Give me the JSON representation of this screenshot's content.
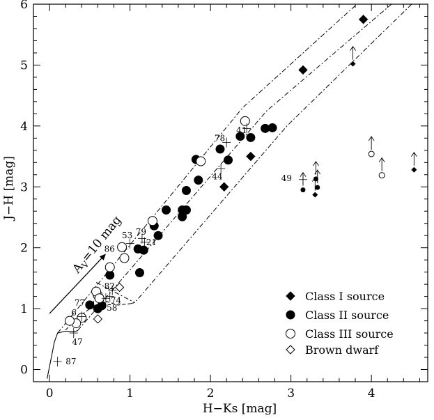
{
  "chart_data": {
    "type": "scatter",
    "title": "",
    "xlabel": "H−Ks [mag]",
    "ylabel": "J−H [mag]",
    "xlim": [
      -0.2,
      4.7
    ],
    "ylim": [
      -0.2,
      6.0
    ],
    "xticks": [
      0,
      1,
      2,
      3,
      4
    ],
    "yticks": [
      0,
      1,
      2,
      3,
      4,
      5,
      6
    ],
    "grid": false,
    "legend_position": "bottom-right",
    "reddening_vector": {
      "label_main": "A",
      "label_sub": "V",
      "label_rest": "=10 mag",
      "from": [
        0.0,
        0.92
      ],
      "to": [
        0.7,
        1.9
      ]
    },
    "legend": [
      {
        "marker": "filled-diamond",
        "label": "Class I source"
      },
      {
        "marker": "filled-circle",
        "label": "Class II source"
      },
      {
        "marker": "open-circle",
        "label": "Class III source"
      },
      {
        "marker": "open-diamond",
        "label": "Brown dwarf"
      }
    ],
    "series": [
      {
        "name": "Class I source",
        "marker": "filled-diamond",
        "points": [
          [
            3.9,
            5.75
          ],
          [
            3.15,
            4.92
          ],
          [
            2.5,
            3.5
          ],
          [
            2.17,
            3.0
          ]
        ]
      },
      {
        "name": "Class II source",
        "marker": "filled-circle",
        "points": [
          [
            2.77,
            3.97
          ],
          [
            2.68,
            3.96
          ],
          [
            2.5,
            3.81
          ],
          [
            2.37,
            3.83
          ],
          [
            2.12,
            3.62
          ],
          [
            2.22,
            3.44
          ],
          [
            1.82,
            3.45
          ],
          [
            1.85,
            3.11
          ],
          [
            1.7,
            2.94
          ],
          [
            1.65,
            2.62
          ],
          [
            1.7,
            2.62
          ],
          [
            1.65,
            2.51
          ],
          [
            1.45,
            2.62
          ],
          [
            1.3,
            2.36
          ],
          [
            1.35,
            2.2
          ],
          [
            1.1,
            1.98
          ],
          [
            1.17,
            1.96
          ],
          [
            1.12,
            1.59
          ],
          [
            0.75,
            1.55
          ],
          [
            0.65,
            1.05
          ],
          [
            0.6,
            1.0
          ],
          [
            0.5,
            1.06
          ]
        ]
      },
      {
        "name": "Class III source",
        "marker": "open-circle",
        "points": [
          [
            2.43,
            4.08
          ],
          [
            1.88,
            3.42
          ],
          [
            1.28,
            2.44
          ],
          [
            0.9,
            2.01
          ],
          [
            0.93,
            1.83
          ],
          [
            0.75,
            1.68
          ],
          [
            0.6,
            1.22
          ],
          [
            0.58,
            1.28
          ],
          [
            0.62,
            1.17
          ],
          [
            0.4,
            0.85
          ],
          [
            0.33,
            0.76
          ],
          [
            0.25,
            0.8
          ]
        ]
      },
      {
        "name": "Brown dwarf",
        "marker": "open-diamond",
        "points": [
          [
            0.87,
            1.35
          ],
          [
            0.6,
            0.83
          ]
        ]
      },
      {
        "name": "lower limits (filled diamond)",
        "marker": "small-filled-diamond-arrow",
        "points": [
          [
            3.77,
            5.02
          ],
          [
            4.53,
            3.28
          ],
          [
            3.3,
            2.87
          ]
        ]
      },
      {
        "name": "lower limits (filled circle)",
        "marker": "small-filled-circle-arrow",
        "points": [
          [
            3.15,
            2.95
          ],
          [
            3.31,
            3.13
          ],
          [
            3.33,
            2.99
          ]
        ]
      },
      {
        "name": "lower limits (open circle)",
        "marker": "small-open-circle-arrow",
        "points": [
          [
            4.0,
            3.54
          ],
          [
            4.13,
            3.19
          ]
        ]
      },
      {
        "name": "labelled error points",
        "marker": "cross",
        "points": [
          [
            0.1,
            0.13
          ],
          [
            0.3,
            0.6
          ],
          [
            0.4,
            0.87
          ],
          [
            0.55,
            1.05
          ],
          [
            0.75,
            1.2
          ],
          [
            0.78,
            1.3
          ],
          [
            0.7,
            1.17
          ],
          [
            1.0,
            2.07
          ],
          [
            1.15,
            2.15
          ],
          [
            1.18,
            2.09
          ],
          [
            2.13,
            3.3
          ],
          [
            2.2,
            3.73
          ],
          [
            2.45,
            3.96
          ],
          [
            3.15,
            3.12
          ]
        ]
      }
    ],
    "annotations": [
      {
        "text": "87",
        "x": 0.2,
        "y": 0.13
      },
      {
        "text": "47",
        "x": 0.28,
        "y": 0.45
      },
      {
        "text": "6",
        "x": 0.27,
        "y": 0.93
      },
      {
        "text": "77",
        "x": 0.31,
        "y": 1.09
      },
      {
        "text": "58",
        "x": 0.71,
        "y": 1.01
      },
      {
        "text": "74",
        "x": 0.76,
        "y": 1.13
      },
      {
        "text": "82",
        "x": 0.68,
        "y": 1.37
      },
      {
        "text": "86",
        "x": 0.68,
        "y": 1.98
      },
      {
        "text": "53",
        "x": 0.9,
        "y": 2.2
      },
      {
        "text": "79",
        "x": 1.07,
        "y": 2.26
      },
      {
        "text": "21",
        "x": 1.2,
        "y": 2.09
      },
      {
        "text": "44",
        "x": 2.02,
        "y": 3.17
      },
      {
        "text": "78",
        "x": 2.05,
        "y": 3.8
      },
      {
        "text": "41",
        "x": 2.32,
        "y": 3.93
      },
      {
        "text": "49",
        "x": 2.88,
        "y": 3.14
      }
    ],
    "curves": {
      "main_sequence": [
        [
          -0.03,
          -0.15
        ],
        [
          0.0,
          0.05
        ],
        [
          0.03,
          0.25
        ],
        [
          0.06,
          0.45
        ],
        [
          0.1,
          0.6
        ],
        [
          0.2,
          0.63
        ],
        [
          0.3,
          0.62
        ],
        [
          0.35,
          0.64
        ]
      ],
      "giant_branch": [
        [
          0.2,
          0.65
        ],
        [
          0.35,
          0.85
        ],
        [
          0.5,
          1.0
        ],
        [
          0.7,
          1.12
        ],
        [
          0.85,
          1.06
        ],
        [
          1.0,
          1.08
        ]
      ],
      "bands": [
        [
          [
            0.1,
            0.6
          ],
          [
            2.4,
            4.3
          ],
          [
            3.82,
            6.0
          ]
        ],
        [
          [
            0.35,
            0.64
          ],
          [
            2.7,
            4.25
          ],
          [
            4.25,
            6.0
          ]
        ],
        [
          [
            1.0,
            1.08
          ],
          [
            1.06,
            1.1
          ],
          [
            2.95,
            4.0
          ],
          [
            4.5,
            6.0
          ]
        ],
        [
          [
            0.58,
            1.43
          ],
          [
            1.06,
            1.1
          ]
        ]
      ]
    }
  }
}
